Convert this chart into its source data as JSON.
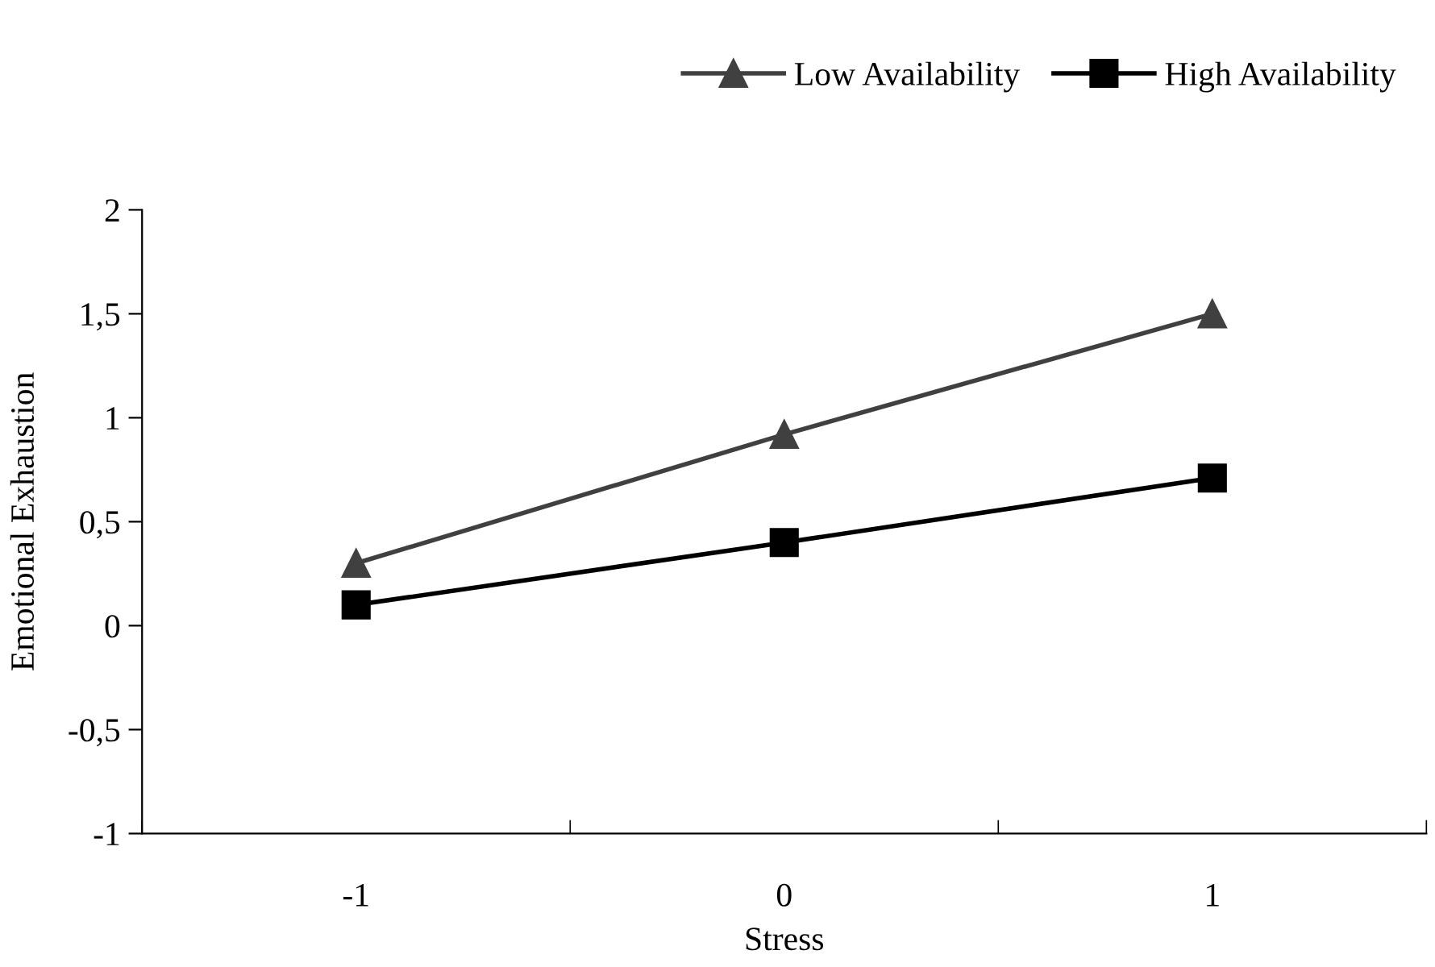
{
  "chart_data": {
    "type": "line",
    "xlabel": "Stress",
    "ylabel": "Emotional Exhaustion",
    "categories": [
      "-1",
      "0",
      "1"
    ],
    "series": [
      {
        "name": "Low Availability",
        "color": "#404040",
        "values": [
          0.3,
          0.92,
          1.5
        ],
        "marker": "triangle"
      },
      {
        "name": "High Availability",
        "color": "#000000",
        "values": [
          0.1,
          0.4,
          0.71
        ],
        "marker": "square"
      }
    ],
    "ylim": [
      -1,
      2
    ],
    "yticks": [
      -1,
      {
        "value": -0.5,
        "label": "-0,5"
      },
      0,
      {
        "value": 0.5,
        "label": "0,5"
      },
      1,
      {
        "value": 1.5,
        "label": "1,5"
      },
      2
    ],
    "grid": false,
    "legend": "top right",
    "line_style": "solid"
  }
}
